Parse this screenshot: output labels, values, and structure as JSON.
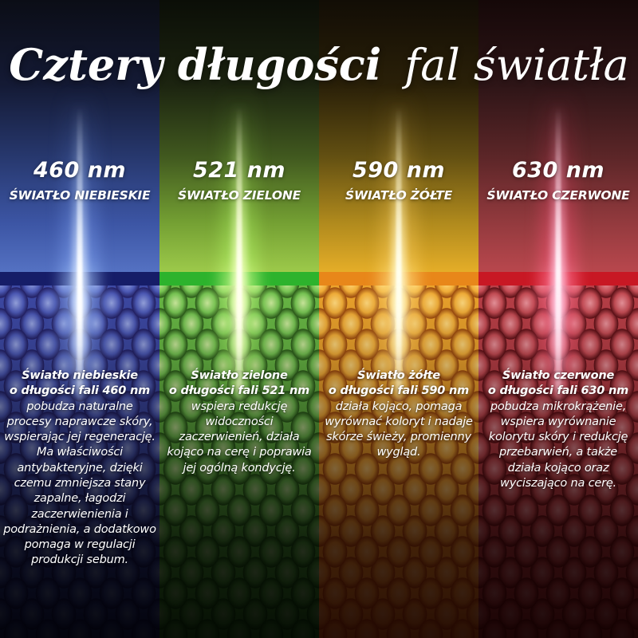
{
  "title": {
    "bold": "Cztery długości",
    "light": "fal światła"
  },
  "columns": [
    {
      "id": "blue",
      "wavelength": "460 nm",
      "light_name": "ŚWIATŁO NIEBIESKIE",
      "intro_line1": "Światło niebieskie",
      "intro_line2": "o długości fali 460 nm",
      "description": "pobudza naturalne procesy naprawcze skóry, wspierając jej regenerację. Ma właściwości antybakteryjne, dzięki czemu zmniejsza stany zapalne, łagodzi zaczerwienienia i podrażnienia, a dodatkowo pomaga w regulacji produkcji sebum.",
      "accent_color": "#3d49a4",
      "stripe_color": "#161d68",
      "beam_color": "#8cb0ff"
    },
    {
      "id": "green",
      "wavelength": "521 nm",
      "light_name": "ŚWIATŁO ZIELONE",
      "intro_line1": "Światło zielone",
      "intro_line2": "o długości fali 521 nm",
      "description": "wspiera redukcję widoczności zaczerwienień, działa kojąco na cerę i poprawia jej ogólną kondycję.",
      "accent_color": "#68b845",
      "stripe_color": "#2db32d",
      "beam_color": "#d6ff8c"
    },
    {
      "id": "yellow",
      "wavelength": "590 nm",
      "light_name": "ŚWIATŁO ŻÓŁTE",
      "intro_line1": "Światło żółte",
      "intro_line2": "o długości fali 590 nm",
      "description": "działa kojąco, pomaga wyrównać koloryt i nadaje skórze świeży, promienny wygląd.",
      "accent_color": "#eca32c",
      "stripe_color": "#e8871a",
      "beam_color": "#ffe08c"
    },
    {
      "id": "red",
      "wavelength": "630 nm",
      "light_name": "ŚWIATŁO CZERWONE",
      "intro_line1": "Światło czerwone",
      "intro_line2": "o długości fali 630 nm",
      "description": "pobudza mikrokrążenie, wspiera wyrównanie kolorytu skóry i redukcję przebarwień, a także działa kojąco oraz wyciszająco na cerę.",
      "accent_color": "#b93f47",
      "stripe_color": "#c81824",
      "beam_color": "#ff8ca8"
    }
  ]
}
